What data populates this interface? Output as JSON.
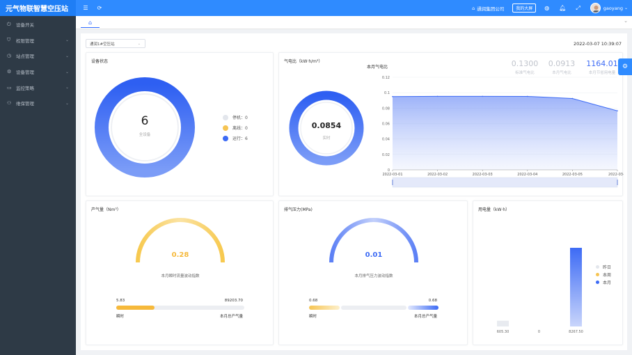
{
  "app": {
    "title": "元气物联智慧空压站"
  },
  "topbar": {
    "company": "通润集团公司",
    "big_screen": "我的大屏",
    "username": "gaoyang"
  },
  "sidebar": {
    "items": [
      {
        "label": "设备开关",
        "icon": "switch-icon",
        "has_children": false
      },
      {
        "label": "权限管理",
        "icon": "shield-icon",
        "has_children": true
      },
      {
        "label": "站点管理",
        "icon": "clock-icon",
        "has_children": true
      },
      {
        "label": "设备管理",
        "icon": "gear-circle-icon",
        "has_children": true
      },
      {
        "label": "监控策略",
        "icon": "monitor-icon",
        "has_children": true
      },
      {
        "label": "维保管理",
        "icon": "user-icon",
        "has_children": true
      }
    ]
  },
  "filters": {
    "station": "通润1#空压站"
  },
  "datetime": "2022-03-07 10:39:07",
  "device_status": {
    "title": "设备状态",
    "total": "6",
    "total_label": "全设备",
    "legend": [
      {
        "label": "停机：0",
        "color": "#e3e6ec"
      },
      {
        "label": "离线：0",
        "color": "#f6c452"
      },
      {
        "label": "运行：6",
        "color": "#3d6bf5"
      }
    ]
  },
  "gas_ratio": {
    "title": "气电比（kW·h/m³）",
    "value": "0.0854",
    "value_label": "实时",
    "chart_title": "本月气电比",
    "stats": [
      {
        "value": "0.1300",
        "label": "标准气电比",
        "color": "#c0c4cc"
      },
      {
        "value": "0.0913",
        "label": "本月气电比",
        "color": "#c0c4cc"
      },
      {
        "value": "1164.01",
        "label": "本月节省用电量",
        "color": "#3d6bf5"
      }
    ]
  },
  "chart_data": {
    "type": "area",
    "x": [
      "2022-03-01",
      "2022-03-02",
      "2022-03-03",
      "2022-03-04",
      "2022-03-05",
      "2022-03-06"
    ],
    "values": [
      0.095,
      0.0953,
      0.0953,
      0.0952,
      0.0925,
      0.0765
    ],
    "tick_labels": [
      "2022-03-01",
      "2022-03-02",
      "2022-03-03",
      "2022-03-04",
      "2022-03-05",
      "2022-03-0"
    ],
    "ylim": [
      0,
      0.12
    ],
    "yticks": [
      "0",
      "0.02",
      "0.04",
      "0.06",
      "0.08",
      "0.1",
      "0.12"
    ],
    "color": "#3d6bf5",
    "grid": true
  },
  "production": {
    "title": "产气量（Nm³）",
    "value": "0.28",
    "desc": "本月瞬时流量波动指数",
    "bar_left": "5.83",
    "bar_right": "89203.70",
    "foot_left": "瞬时",
    "foot_right": "本月总产气量",
    "fill_fraction": 0.3,
    "color": "#f6c452"
  },
  "pressure": {
    "title": "排气压力(MPa)",
    "value": "0.01",
    "desc": "本月排气压力波动指数",
    "bar_left": "0.68",
    "bar_right": "0.68",
    "foot_left": "瞬时",
    "foot_right": "本月总产气量",
    "color": "#3d6bf5"
  },
  "power": {
    "title": "用电量（kW·h）",
    "bars": [
      {
        "value_label": "605.30",
        "value": 605.3,
        "color": "#e8ebf0"
      },
      {
        "value_label": "0",
        "value": 0,
        "color": "#f6c452"
      },
      {
        "value_label": "8267.50",
        "value": 8267.5,
        "color": "#3d6bf5"
      }
    ],
    "legend": [
      {
        "label": "昨日",
        "color": "#e3e6ec"
      },
      {
        "label": "本周",
        "color": "#f6c452"
      },
      {
        "label": "本月",
        "color": "#3d6bf5"
      }
    ]
  }
}
